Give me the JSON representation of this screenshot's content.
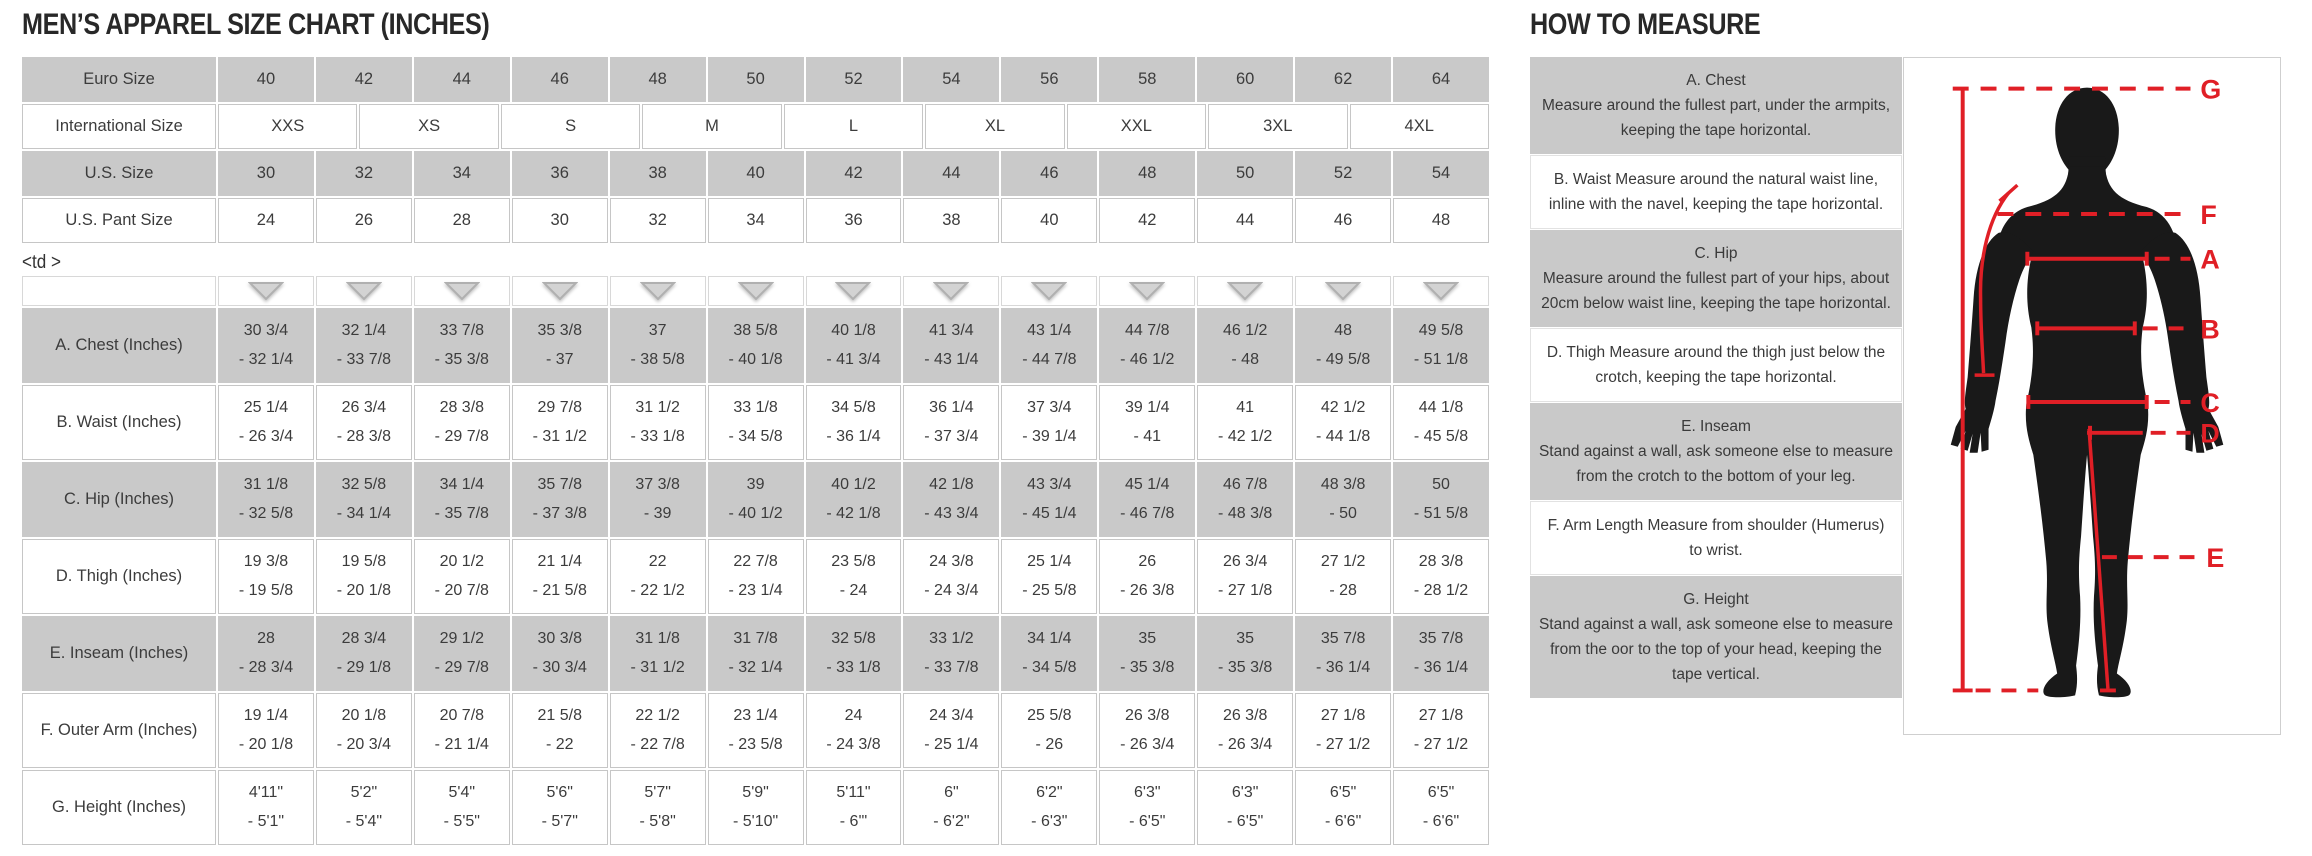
{
  "page": {
    "size_chart_title": "MEN’S APPAREL SIZE CHART (INCHES)",
    "how_to_measure_title": "HOW TO MEASURE",
    "stray_text": "<td >"
  },
  "colors": {
    "accent_red": "#e01f26",
    "cell_gray": "#c9c9c9",
    "triangle_gray": "#d3d3d3",
    "silhouette_black": "#191919"
  },
  "size_table": {
    "rows": [
      {
        "label": "Euro Size",
        "shaded": true,
        "cells": [
          "40",
          "42",
          "44",
          "46",
          "48",
          "50",
          "52",
          "54",
          "56",
          "58",
          "60",
          "62",
          "64"
        ]
      },
      {
        "label": "International Size",
        "shaded": false,
        "cells": [
          "XXS",
          "XS",
          "S",
          "M",
          "L",
          "XL",
          "XXL",
          "3XL",
          "4XL"
        ]
      },
      {
        "label": "U.S. Size",
        "shaded": true,
        "cells": [
          "30",
          "32",
          "34",
          "36",
          "38",
          "40",
          "42",
          "44",
          "46",
          "48",
          "50",
          "52",
          "54"
        ]
      },
      {
        "label": "U.S. Pant Size",
        "shaded": false,
        "cells": [
          "24",
          "26",
          "28",
          "30",
          "32",
          "34",
          "36",
          "38",
          "40",
          "42",
          "44",
          "46",
          "48"
        ]
      }
    ]
  },
  "measurement_table": {
    "sort_icon_count": 13,
    "rows": [
      {
        "label": "A. Chest (Inches)",
        "shaded": true,
        "cells": [
          [
            "30 3/4",
            "- 32 1/4"
          ],
          [
            "32 1/4",
            "- 33 7/8"
          ],
          [
            "33 7/8",
            "- 35 3/8"
          ],
          [
            "35 3/8",
            "- 37"
          ],
          [
            "37",
            "- 38 5/8"
          ],
          [
            "38 5/8",
            "- 40 1/8"
          ],
          [
            "40 1/8",
            "- 41 3/4"
          ],
          [
            "41 3/4",
            "- 43 1/4"
          ],
          [
            "43 1/4",
            "- 44 7/8"
          ],
          [
            "44 7/8",
            "- 46 1/2"
          ],
          [
            "46 1/2",
            "- 48"
          ],
          [
            "48",
            "- 49 5/8"
          ],
          [
            "49 5/8",
            "- 51 1/8"
          ]
        ]
      },
      {
        "label": "B. Waist (Inches)",
        "shaded": false,
        "cells": [
          [
            "25 1/4",
            "- 26 3/4"
          ],
          [
            "26 3/4",
            "- 28 3/8"
          ],
          [
            "28 3/8",
            "- 29 7/8"
          ],
          [
            "29 7/8",
            "- 31 1/2"
          ],
          [
            "31 1/2",
            "- 33 1/8"
          ],
          [
            "33 1/8",
            "- 34 5/8"
          ],
          [
            "34 5/8",
            "- 36 1/4"
          ],
          [
            "36 1/4",
            "- 37 3/4"
          ],
          [
            "37 3/4",
            "- 39 1/4"
          ],
          [
            "39 1/4",
            "- 41"
          ],
          [
            "41",
            "- 42 1/2"
          ],
          [
            "42 1/2",
            "- 44 1/8"
          ],
          [
            "44 1/8",
            "- 45 5/8"
          ]
        ]
      },
      {
        "label": "C. Hip (Inches)",
        "shaded": true,
        "cells": [
          [
            "31 1/8",
            "- 32 5/8"
          ],
          [
            "32 5/8",
            "- 34 1/4"
          ],
          [
            "34 1/4",
            "- 35 7/8"
          ],
          [
            "35 7/8",
            "- 37 3/8"
          ],
          [
            "37 3/8",
            "- 39"
          ],
          [
            "39",
            "- 40 1/2"
          ],
          [
            "40 1/2",
            "- 42 1/8"
          ],
          [
            "42 1/8",
            "- 43 3/4"
          ],
          [
            "43 3/4",
            "- 45 1/4"
          ],
          [
            "45 1/4",
            "- 46 7/8"
          ],
          [
            "46 7/8",
            "- 48 3/8"
          ],
          [
            "48 3/8",
            "- 50"
          ],
          [
            "50",
            "- 51 5/8"
          ]
        ]
      },
      {
        "label": "D. Thigh (Inches)",
        "shaded": false,
        "cells": [
          [
            "19 3/8",
            "- 19 5/8"
          ],
          [
            "19 5/8",
            "- 20 1/8"
          ],
          [
            "20 1/2",
            "- 20 7/8"
          ],
          [
            "21 1/4",
            "- 21 5/8"
          ],
          [
            "22",
            "- 22 1/2"
          ],
          [
            "22 7/8",
            "- 23 1/4"
          ],
          [
            "23 5/8",
            "- 24"
          ],
          [
            "24 3/8",
            "- 24 3/4"
          ],
          [
            "25 1/4",
            "- 25 5/8"
          ],
          [
            "26",
            "- 26 3/8"
          ],
          [
            "26 3/4",
            "- 27 1/8"
          ],
          [
            "27 1/2",
            "- 28"
          ],
          [
            "28 3/8",
            "- 28 1/2"
          ]
        ]
      },
      {
        "label": "E. Inseam (Inches)",
        "shaded": true,
        "cells": [
          [
            "28",
            "- 28 3/4"
          ],
          [
            "28 3/4",
            "- 29 1/8"
          ],
          [
            "29 1/2",
            "- 29 7/8"
          ],
          [
            "30 3/8",
            "- 30 3/4"
          ],
          [
            "31 1/8",
            "- 31 1/2"
          ],
          [
            "31 7/8",
            "- 32 1/4"
          ],
          [
            "32 5/8",
            "- 33 1/8"
          ],
          [
            "33 1/2",
            "- 33 7/8"
          ],
          [
            "34 1/4",
            "- 34 5/8"
          ],
          [
            "35",
            "- 35 3/8"
          ],
          [
            "35",
            "- 35 3/8"
          ],
          [
            "35 7/8",
            "- 36 1/4"
          ],
          [
            "35 7/8",
            "- 36 1/4"
          ]
        ]
      },
      {
        "label": "F. Outer Arm (Inches)",
        "shaded": false,
        "cells": [
          [
            "19 1/4",
            "- 20 1/8"
          ],
          [
            "20 1/8",
            "- 20 3/4"
          ],
          [
            "20 7/8",
            "- 21 1/4"
          ],
          [
            "21 5/8",
            "- 22"
          ],
          [
            "22 1/2",
            "- 22 7/8"
          ],
          [
            "23 1/4",
            "- 23 5/8"
          ],
          [
            "24",
            "- 24 3/8"
          ],
          [
            "24 3/4",
            "- 25 1/4"
          ],
          [
            "25 5/8",
            "- 26"
          ],
          [
            "26 3/8",
            "- 26 3/4"
          ],
          [
            "26 3/8",
            "- 26 3/4"
          ],
          [
            "27 1/8",
            "- 27 1/2"
          ],
          [
            "27 1/8",
            "- 27 1/2"
          ]
        ]
      },
      {
        "label": "G. Height (Inches)",
        "shaded": false,
        "cells": [
          [
            "4'11\"",
            "- 5'1\""
          ],
          [
            "5'2\"",
            "- 5'4\""
          ],
          [
            "5'4\"",
            "- 5'5\""
          ],
          [
            "5'6\"",
            "- 5'7\""
          ],
          [
            "5'7\"",
            "- 5'8\""
          ],
          [
            "5'9\"",
            "- 5'10\""
          ],
          [
            "5'11\"",
            "- 6'\""
          ],
          [
            "6\"",
            "- 6'2\""
          ],
          [
            "6'2\"",
            "- 6'3\""
          ],
          [
            "6'3\"",
            "- 6'5\""
          ],
          [
            "6'3\"",
            "- 6'5\""
          ],
          [
            "6'5\"",
            "- 6'6\""
          ],
          [
            "6'5\"",
            "- 6'6\""
          ]
        ]
      }
    ]
  },
  "instructions": [
    {
      "heading": "A. Chest",
      "inline": false,
      "shaded": true,
      "text": "Measure around the fullest part, under the armpits, keeping the tape horizontal."
    },
    {
      "heading": "B. Waist",
      "inline": true,
      "shaded": false,
      "text": "Measure around the natural waist line, inline with the navel, keeping the tape horizontal."
    },
    {
      "heading": "C. Hip",
      "inline": false,
      "shaded": true,
      "text": "Measure around the fullest part of your hips, about 20cm below waist line, keeping the tape horizontal."
    },
    {
      "heading": "D. Thigh",
      "inline": true,
      "shaded": false,
      "text": "Measure around the thigh just below the crotch, keeping the tape horizontal."
    },
    {
      "heading": "E. Inseam",
      "inline": false,
      "shaded": true,
      "text": "Stand against a wall, ask someone else to measure from the crotch to the bottom of your leg."
    },
    {
      "heading": "F. Arm Length",
      "inline": true,
      "shaded": false,
      "text": "Measure from shoulder (Humerus) to wrist."
    },
    {
      "heading": "G. Height",
      "inline": false,
      "shaded": true,
      "text": "Stand against a wall, ask someone else to measure from the oor to the top of your head, keeping the tape vertical."
    }
  ],
  "figure": {
    "measure_labels": [
      "G",
      "F",
      "A",
      "B",
      "C",
      "D",
      "E"
    ]
  }
}
